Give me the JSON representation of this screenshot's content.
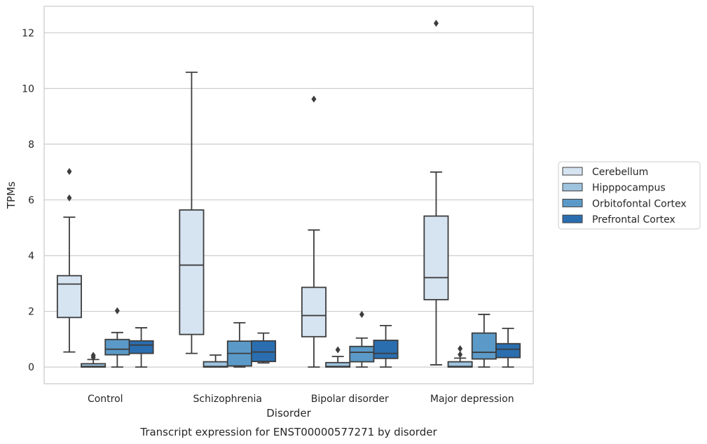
{
  "chart_data": {
    "type": "box",
    "caption": "Transcript expression for ENST00000577271 by disorder",
    "xlabel": "Disorder",
    "ylabel": "TPMs",
    "ylim": [
      -0.6,
      12.95
    ],
    "yticks": [
      0,
      2,
      4,
      6,
      8,
      10,
      12
    ],
    "grid": "horizontal",
    "legend_position": "right",
    "categories": [
      "Control",
      "Schizophrenia",
      "Bipolar disorder",
      "Major depression"
    ],
    "series": [
      {
        "name": "Cerebellum",
        "color": "#d6e4f2",
        "boxes": [
          {
            "whislo": 0.54,
            "q1": 1.78,
            "med": 2.98,
            "q3": 3.28,
            "whishi": 5.38,
            "fliers": [
              6.07,
              7.02
            ]
          },
          {
            "whislo": 0.49,
            "q1": 1.17,
            "med": 3.66,
            "q3": 5.64,
            "whishi": 10.58,
            "fliers": []
          },
          {
            "whislo": 0.0,
            "q1": 1.09,
            "med": 1.85,
            "q3": 2.86,
            "whishi": 4.92,
            "fliers": [
              9.62
            ]
          },
          {
            "whislo": 0.08,
            "q1": 2.42,
            "med": 3.21,
            "q3": 5.42,
            "whishi": 7.0,
            "fliers": [
              12.34
            ]
          }
        ]
      },
      {
        "name": "Hipppocampus",
        "color": "#9dc3de",
        "boxes": [
          {
            "whislo": 0.0,
            "q1": 0.0,
            "med": 0.02,
            "q3": 0.12,
            "whishi": 0.27,
            "fliers": [
              0.35,
              0.42
            ]
          },
          {
            "whislo": 0.0,
            "q1": 0.0,
            "med": 0.02,
            "q3": 0.19,
            "whishi": 0.43,
            "fliers": []
          },
          {
            "whislo": 0.0,
            "q1": 0.0,
            "med": 0.02,
            "q3": 0.16,
            "whishi": 0.38,
            "fliers": [
              0.62
            ]
          },
          {
            "whislo": 0.0,
            "q1": 0.0,
            "med": 0.02,
            "q3": 0.19,
            "whishi": 0.32,
            "fliers": [
              0.45,
              0.66
            ]
          }
        ]
      },
      {
        "name": "Orbitofontal Cortex",
        "color": "#5b9ac8",
        "boxes": [
          {
            "whislo": 0.0,
            "q1": 0.44,
            "med": 0.64,
            "q3": 0.99,
            "whishi": 1.24,
            "fliers": [
              2.02
            ]
          },
          {
            "whislo": 0.0,
            "q1": 0.04,
            "med": 0.49,
            "q3": 0.93,
            "whishi": 1.59,
            "fliers": []
          },
          {
            "whislo": 0.0,
            "q1": 0.19,
            "med": 0.53,
            "q3": 0.74,
            "whishi": 1.04,
            "fliers": [
              1.89
            ]
          },
          {
            "whislo": 0.0,
            "q1": 0.29,
            "med": 0.53,
            "q3": 1.22,
            "whishi": 1.89,
            "fliers": []
          }
        ]
      },
      {
        "name": "Prefrontal Cortex",
        "color": "#2a6eb0",
        "boxes": [
          {
            "whislo": 0.0,
            "q1": 0.49,
            "med": 0.79,
            "q3": 0.94,
            "whishi": 1.41,
            "fliers": []
          },
          {
            "whislo": 0.15,
            "q1": 0.2,
            "med": 0.54,
            "q3": 0.94,
            "whishi": 1.22,
            "fliers": []
          },
          {
            "whislo": 0.0,
            "q1": 0.31,
            "med": 0.49,
            "q3": 0.96,
            "whishi": 1.49,
            "fliers": []
          },
          {
            "whislo": 0.0,
            "q1": 0.34,
            "med": 0.64,
            "q3": 0.84,
            "whishi": 1.39,
            "fliers": []
          }
        ]
      }
    ]
  }
}
